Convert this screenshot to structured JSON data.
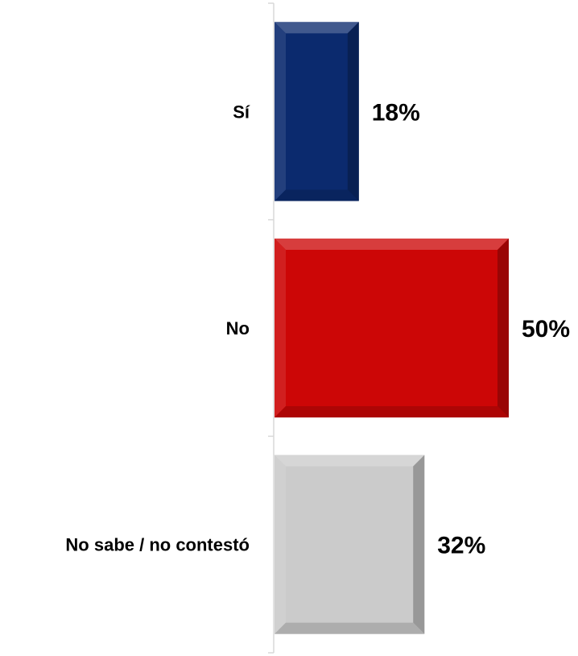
{
  "chart_data": {
    "type": "bar",
    "orientation": "horizontal",
    "categories": [
      "Sí",
      "No",
      "No sabe / no contestó"
    ],
    "values": [
      18,
      50,
      32
    ],
    "value_labels": [
      "18%",
      "50%",
      "32%"
    ],
    "colors": [
      "#0b2a6e",
      "#cc0606",
      "#cbcbcb"
    ],
    "xlim": [
      0,
      50
    ],
    "grid": false,
    "legend": "none"
  }
}
